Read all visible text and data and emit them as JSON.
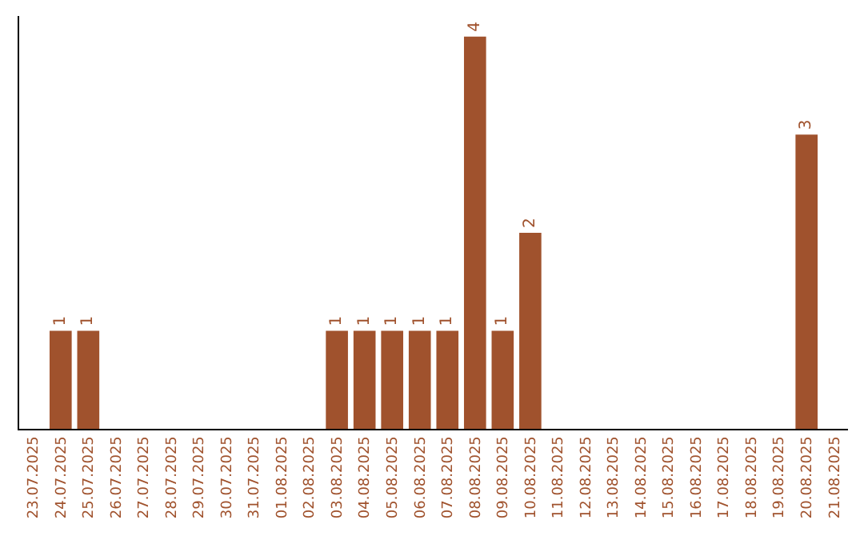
{
  "chart_data": {
    "type": "bar",
    "categories": [
      "23.07.2025",
      "24.07.2025",
      "25.07.2025",
      "26.07.2025",
      "27.07.2025",
      "28.07.2025",
      "29.07.2025",
      "30.07.2025",
      "31.07.2025",
      "01.08.2025",
      "02.08.2025",
      "03.08.2025",
      "04.08.2025",
      "05.08.2025",
      "06.08.2025",
      "07.08.2025",
      "08.08.2025",
      "09.08.2025",
      "10.08.2025",
      "11.08.2025",
      "12.08.2025",
      "13.08.2025",
      "14.08.2025",
      "15.08.2025",
      "16.08.2025",
      "17.08.2025",
      "18.08.2025",
      "19.08.2025",
      "20.08.2025",
      "21.08.2025"
    ],
    "values": [
      0,
      1,
      1,
      0,
      0,
      0,
      0,
      0,
      0,
      0,
      0,
      1,
      1,
      1,
      1,
      1,
      4,
      1,
      2,
      0,
      0,
      0,
      0,
      0,
      0,
      0,
      0,
      0,
      3,
      0
    ],
    "color": "#a0522d",
    "value_labels": [
      null,
      "1",
      "1",
      null,
      null,
      null,
      null,
      null,
      null,
      null,
      null,
      "1",
      "1",
      "1",
      "1",
      "1",
      "4",
      "1",
      "2",
      null,
      null,
      null,
      null,
      null,
      null,
      null,
      null,
      null,
      "3",
      null
    ]
  }
}
